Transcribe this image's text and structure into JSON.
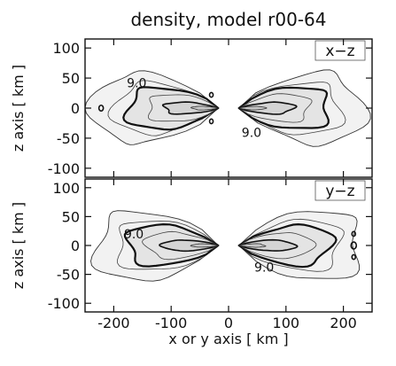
{
  "chart_data": {
    "type": "contour",
    "title": "density, model r00-64",
    "xlabel": "x or y axis [ km ]",
    "ylabel": "z axis [ km ]",
    "xlim": [
      -250,
      250
    ],
    "xticks": [
      -200,
      -100,
      0,
      100,
      200
    ],
    "panels": [
      {
        "name": "x−z",
        "ylabel": "z axis [ km ]",
        "ylim": [
          -115,
          115
        ],
        "yticks": [
          100,
          50,
          0,
          -50,
          -100
        ],
        "contour_labels": [
          "9.0",
          "9.0"
        ]
      },
      {
        "name": "y−z",
        "ylabel": "z axis [ km ]",
        "ylim": [
          -115,
          115
        ],
        "yticks": [
          100,
          50,
          0,
          -50,
          -100
        ],
        "contour_labels": [
          "9.0",
          "9.0"
        ]
      }
    ],
    "grid": false,
    "colors": {
      "outer_fill": "#f2f2f2",
      "mid_fill": "#e4e4e4",
      "inner_fill": "#d4d4d4",
      "line": "#111111"
    }
  }
}
